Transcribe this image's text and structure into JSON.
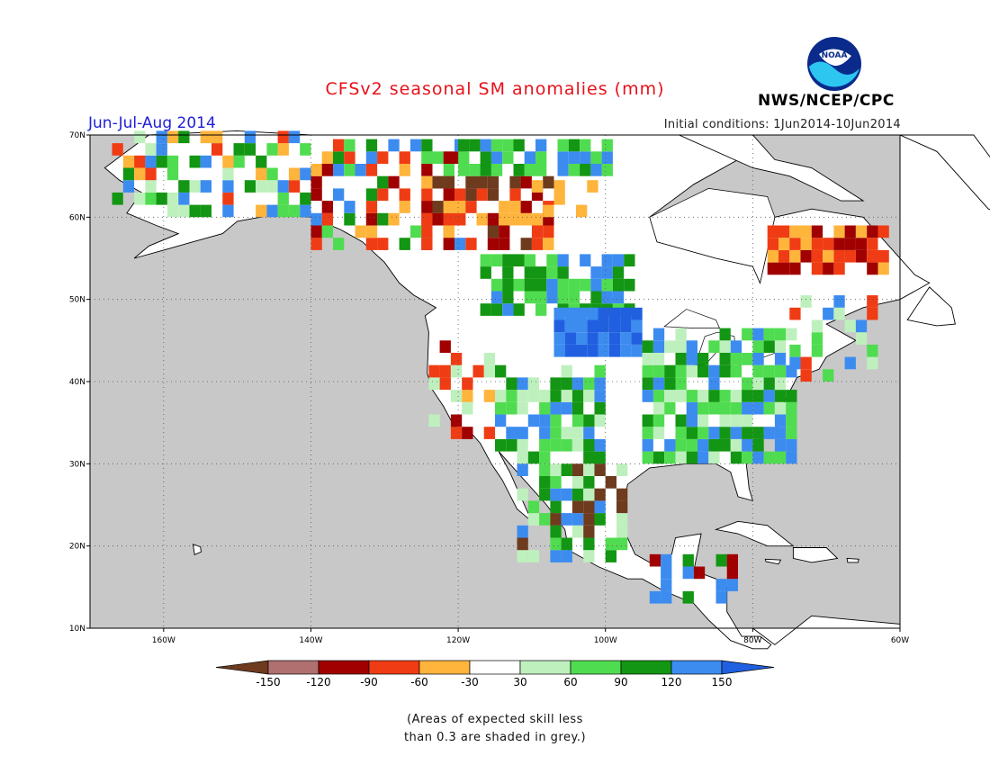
{
  "header": {
    "title": "CFSv2 seasonal SM anomalies (mm)",
    "period": "Jun-Jul-Aug 2014",
    "initial_conditions": "Initial conditions: 1Jun2014-10Jun2014",
    "agency": "NWS/NCEP/CPC",
    "logo_text": "NOAA"
  },
  "map": {
    "lat_ticks": [
      "70N",
      "60N",
      "50N",
      "40N",
      "30N",
      "20N",
      "10N"
    ],
    "lon_ticks": [
      "160W",
      "140W",
      "120W",
      "100W",
      "80W",
      "60W"
    ],
    "lat_range": [
      10,
      70
    ],
    "lon_range": [
      -170,
      -60
    ],
    "ocean_color": "#c8c8c8",
    "land_color": "#ffffff"
  },
  "legend": {
    "labels": [
      "-150",
      "-120",
      "-90",
      "-60",
      "-30",
      "30",
      "60",
      "90",
      "120",
      "150"
    ],
    "colors": [
      "#6e3b1e",
      "#b07070",
      "#a00000",
      "#f03c14",
      "#ffb43c",
      "#ffffff",
      "#bef0be",
      "#50dc50",
      "#139613",
      "#3c8cf0",
      "#2060e0"
    ]
  },
  "anomaly_colors": {
    "dry_extreme": "#6e3b1e",
    "dry_strong": "#a00000",
    "dry_moderate": "#f03c14",
    "dry_weak": "#ffb43c",
    "wet_weak": "#bef0be",
    "wet_moderate": "#50dc50",
    "wet_strong": "#139613",
    "wet_extreme": "#3c8cf0",
    "wet_max": "#2060e0"
  },
  "notes": {
    "line1": "(Areas of expected skill less",
    "line2": "than 0.3 are shaded in grey.)"
  }
}
